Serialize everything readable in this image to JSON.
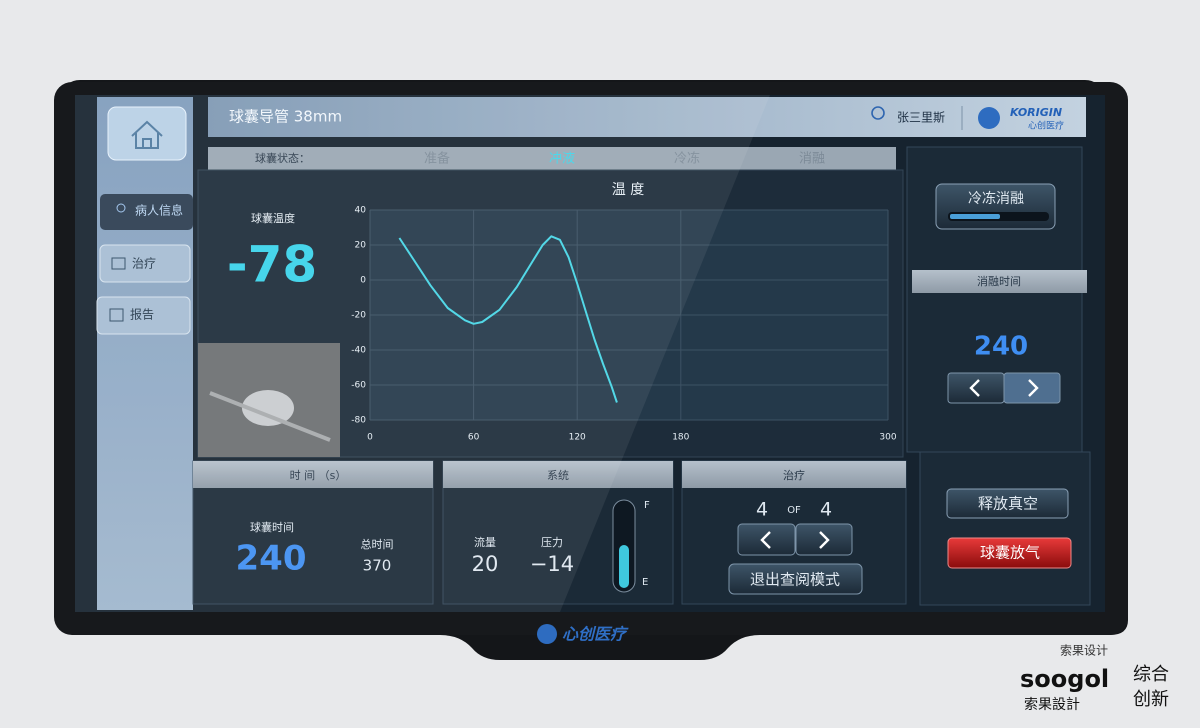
{
  "header": {
    "title": "球囊导管 38mm",
    "user": "张三里斯",
    "brand": "KORIGIN",
    "brand_cn": "心创医疗"
  },
  "nav": [
    "病人信息",
    "治疗",
    "报告"
  ],
  "status": {
    "label": "球囊状态：",
    "steps": [
      "准备",
      "冲液",
      "冷冻",
      "消融"
    ],
    "active_step": 1
  },
  "temperature": {
    "label": "球囊温度",
    "value": "-78"
  },
  "chart_data": {
    "type": "line",
    "title": "温 度",
    "color": "#46d6e6",
    "grid": true,
    "x": [
      17,
      25,
      35,
      45,
      55,
      60,
      65,
      75,
      85,
      95,
      100,
      105,
      110,
      115,
      120,
      125,
      130,
      135,
      140,
      143
    ],
    "y": [
      24,
      12,
      -3,
      -16,
      -23,
      -25,
      -24,
      -17,
      -4,
      12,
      20,
      25,
      23,
      13,
      -2,
      -18,
      -34,
      -48,
      -61,
      -70
    ],
    "xlim": [
      0,
      300
    ],
    "xticks": [
      0,
      60,
      120,
      180,
      300
    ],
    "ylim": [
      -80,
      40
    ],
    "yticks": [
      40,
      20,
      0,
      -20,
      -40,
      -60,
      -80
    ]
  },
  "time_panel": {
    "title": "时 间 （s）",
    "balloon_label": "球囊时间",
    "balloon_value": "240",
    "total_label": "总时间",
    "total_value": "370"
  },
  "system_panel": {
    "title": "系统",
    "flow_label": "流量",
    "flow_value": "20",
    "pressure_label": "压力",
    "pressure_value": "−14",
    "gauge_top": "F",
    "gauge_bottom": "E"
  },
  "treatment_panel": {
    "title": "治疗",
    "current": "4",
    "of": "OF",
    "total": "4",
    "exit": "退出查阅模式"
  },
  "right_panel": {
    "mode_button": "冷冻消融",
    "ablation_title": "消融时间",
    "ablation_value": "240",
    "release": "释放真空",
    "deflate": "球囊放气"
  },
  "bezel_logo": "心创医疗",
  "watermark": {
    "cn": "索果设计",
    "brand": "soogol",
    "slogan1": "综合",
    "slogan2": "创新",
    "cn2": "索果設計"
  }
}
